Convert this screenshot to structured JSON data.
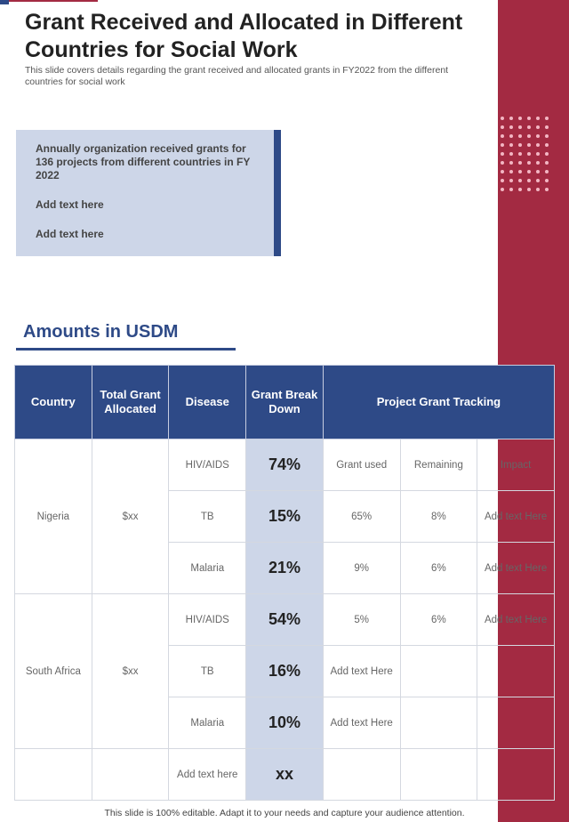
{
  "title": "Grant Received and Allocated in Different Countries for Social Work",
  "subtitle": "This slide covers details regarding the grant received and allocated grants in FY2022 from the different countries for social work",
  "info_box": {
    "main": "Annually organization received grants for 136 projects from different countries in FY 2022",
    "line2": "Add text here",
    "line3": "Add text here"
  },
  "section_heading": "Amounts in  USDM",
  "table": {
    "headers": [
      "Country",
      "Total Grant Allocated",
      "Disease",
      "Grant Break Down",
      "Project Grant Tracking"
    ],
    "rows": [
      [
        "Nigeria",
        "$xx",
        "HIV/AIDS",
        "74%",
        "Grant used",
        "Remaining",
        "Impact"
      ],
      [
        "",
        "",
        "TB",
        "15%",
        "65%",
        "8%",
        "Add text Here"
      ],
      [
        "",
        "",
        "Malaria",
        "21%",
        "9%",
        "6%",
        "Add text Here"
      ],
      [
        "South Africa",
        "$xx",
        "HIV/AIDS",
        "54%",
        "5%",
        "6%",
        "Add text Here"
      ],
      [
        "",
        "",
        "TB",
        "16%",
        "Add text Here",
        "",
        ""
      ],
      [
        "",
        "",
        "Malaria",
        "10%",
        "Add text Here",
        "",
        ""
      ],
      [
        "",
        "",
        "Add text here",
        "xx",
        "",
        "",
        ""
      ]
    ]
  },
  "footer": "This slide is 100% editable. Adapt it to your  needs and capture your audience attention.",
  "colors": {
    "navy": "#2e4a87",
    "crimson": "#a32a42",
    "light_blue": "#cdd6e8"
  }
}
